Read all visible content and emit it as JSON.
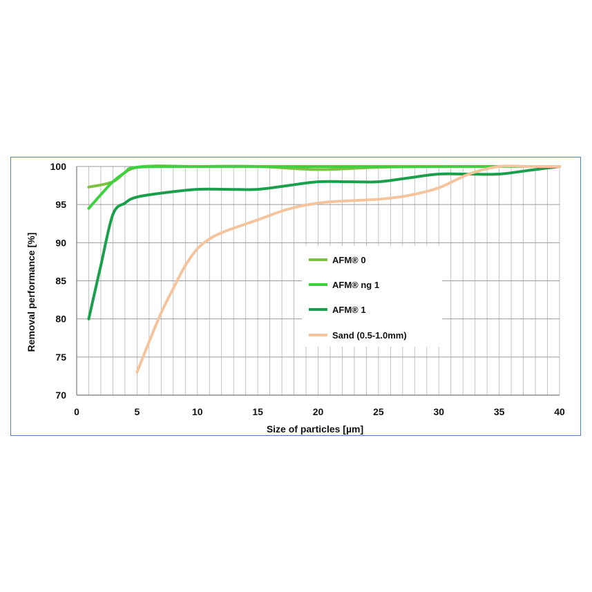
{
  "chart_data": {
    "type": "line",
    "title": "",
    "xlabel": "Size of particles [µm]",
    "ylabel": "Removal performance [%]",
    "xlim": [
      0,
      40
    ],
    "ylim": [
      70,
      100
    ],
    "xticks": [
      0,
      5,
      10,
      15,
      20,
      25,
      30,
      35,
      40
    ],
    "yticks": [
      70,
      75,
      80,
      85,
      90,
      95,
      100
    ],
    "xtick_labels": [
      "0",
      "5",
      "10",
      "15",
      "20",
      "25",
      "30",
      "35",
      "40"
    ],
    "ytick_labels": [
      "70",
      "75",
      "80",
      "85",
      "90",
      "95",
      "100"
    ],
    "grid": true,
    "legend_position": "center-right",
    "series": [
      {
        "name": "AFM® 0",
        "color": "#7cc242",
        "x": [
          1,
          3,
          5,
          10,
          15,
          20,
          25,
          30,
          35,
          40
        ],
        "y": [
          97.3,
          98,
          99.9,
          100,
          100,
          99.6,
          99.9,
          100,
          100,
          100
        ]
      },
      {
        "name": "AFM® ng 1",
        "color": "#3dd13d",
        "x": [
          1,
          2,
          3,
          4,
          5,
          10,
          15,
          20,
          25,
          30,
          35,
          40
        ],
        "y": [
          94.5,
          96.3,
          98,
          99.2,
          99.9,
          100,
          100,
          100,
          100,
          100,
          100,
          100
        ]
      },
      {
        "name": "AFM® 1",
        "color": "#1aa04a",
        "x": [
          1,
          2,
          3,
          4,
          5,
          7.5,
          10,
          12.5,
          15,
          17.5,
          20,
          22.5,
          25,
          27.5,
          30,
          32.5,
          35,
          37.5,
          40
        ],
        "y": [
          80,
          87,
          93.7,
          95.2,
          96,
          96.6,
          97,
          97,
          97,
          97.5,
          98,
          98,
          98,
          98.5,
          99,
          99,
          99,
          99.5,
          100
        ]
      },
      {
        "name": "Sand (0.5-1.0mm)",
        "color": "#f5c49c",
        "x": [
          5,
          6,
          7,
          8,
          9,
          10,
          11,
          12,
          13,
          15,
          17.5,
          20,
          22.5,
          25,
          27.5,
          30,
          32.5,
          35,
          37.5,
          40
        ],
        "y": [
          73,
          77,
          80.8,
          84,
          87,
          89.2,
          90.5,
          91.3,
          91.9,
          93,
          94.4,
          95.2,
          95.5,
          95.7,
          96.2,
          97.2,
          99,
          100,
          100,
          100
        ]
      }
    ]
  }
}
